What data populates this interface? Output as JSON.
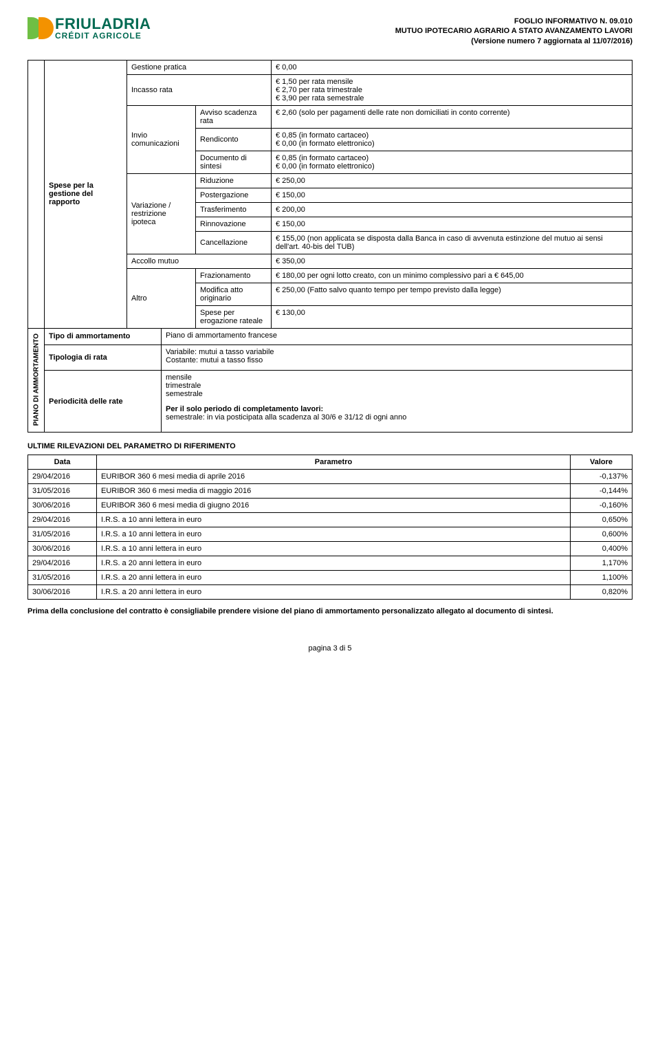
{
  "header": {
    "logo_main": "FRIULADRIA",
    "logo_sub": "CRÉDIT AGRICOLE",
    "doc_line1": "FOGLIO INFORMATIVO N. 09.010",
    "doc_line2": "MUTUO IPOTECARIO AGRARIO A STATO AVANZAMENTO LAVORI",
    "doc_line3": "(Versione numero 7 aggiornata al 11/07/2016)"
  },
  "spese": {
    "row_label": "Spese per la gestione del rapporto",
    "gestione_pratica": {
      "l": "Gestione pratica",
      "v": "€ 0,00"
    },
    "incasso_rata": {
      "l": "Incasso rata",
      "v": "€ 1,50 per rata mensile\n€ 2,70 per rata trimestrale\n€ 3,90 per rata semestrale"
    },
    "invio": {
      "l": "Invio comunicazioni",
      "avviso": {
        "l": "Avviso scadenza rata",
        "v": "€ 2,60 (solo per pagamenti delle rate non domiciliati in conto corrente)"
      },
      "rendiconto": {
        "l": "Rendiconto",
        "v": "€ 0,85 (in formato cartaceo)\n€ 0,00 (in formato elettronico)"
      },
      "documento": {
        "l": "Documento di sintesi",
        "v": "€ 0,85 (in formato cartaceo)\n€ 0,00 (in formato elettronico)"
      }
    },
    "variazione": {
      "l": "Variazione / restrizione ipoteca",
      "riduzione": {
        "l": "Riduzione",
        "v": "€ 250,00"
      },
      "postergazione": {
        "l": "Postergazione",
        "v": "€ 150,00"
      },
      "trasferimento": {
        "l": "Trasferimento",
        "v": "€ 200,00"
      },
      "rinnovazione": {
        "l": "Rinnovazione",
        "v": "€ 150,00"
      },
      "cancellazione": {
        "l": "Cancellazione",
        "v": "€ 155,00 (non applicata se disposta dalla Banca in caso di avvenuta estinzione del mutuo ai sensi dell'art. 40-bis del TUB)"
      }
    },
    "accollo": {
      "l": "Accollo mutuo",
      "v": "€ 350,00"
    },
    "altro": {
      "l": "Altro",
      "frazionamento": {
        "l": "Frazionamento",
        "v": "€ 180,00 per ogni lotto creato, con un minimo complessivo pari a € 645,00"
      },
      "modifica": {
        "l": "Modifica atto originario",
        "v": "€ 250,00 (Fatto salvo quanto tempo per tempo previsto dalla legge)"
      },
      "erogazione": {
        "l": "Spese per erogazione rateale",
        "v": "€ 130,00"
      }
    }
  },
  "piano": {
    "section_label": "PIANO DI AMMORTAMENTO",
    "tipo": {
      "l": "Tipo di ammortamento",
      "v": "Piano di ammortamento francese"
    },
    "tipologia": {
      "l": "Tipologia di rata",
      "v": "Variabile: mutui a tasso variabile\nCostante: mutui a tasso fisso"
    },
    "periodicita": {
      "l": "Periodicità delle rate",
      "v1": "mensile\ntrimestrale\nsemestrale",
      "v2": "Per il solo periodo di completamento lavori:",
      "v3": "semestrale: in via posticipata alla scadenza al 30/6 e 31/12 di ogni anno"
    }
  },
  "rilevazioni": {
    "title": "ULTIME RILEVAZIONI DEL PARAMETRO DI RIFERIMENTO",
    "cols": [
      "Data",
      "Parametro",
      "Valore"
    ],
    "rows": [
      [
        "29/04/2016",
        "EURIBOR 360 6 mesi media di aprile 2016",
        "-0,137%"
      ],
      [
        "31/05/2016",
        "EURIBOR 360 6 mesi media di maggio 2016",
        "-0,144%"
      ],
      [
        "30/06/2016",
        "EURIBOR 360 6 mesi media di giugno 2016",
        "-0,160%"
      ],
      [
        "29/04/2016",
        "I.R.S. a 10 anni lettera in euro",
        "0,650%"
      ],
      [
        "31/05/2016",
        "I.R.S. a 10 anni lettera in euro",
        "0,600%"
      ],
      [
        "30/06/2016",
        "I.R.S. a 10 anni lettera in euro",
        "0,400%"
      ],
      [
        "29/04/2016",
        "I.R.S. a 20 anni lettera in euro",
        "1,170%"
      ],
      [
        "31/05/2016",
        "I.R.S. a 20 anni lettera in euro",
        "1,100%"
      ],
      [
        "30/06/2016",
        "I.R.S. a 20 anni lettera in euro",
        "0,820%"
      ]
    ]
  },
  "closing_note": "Prima della conclusione del contratto è consigliabile prendere visione del piano di ammortamento personalizzato allegato al documento di sintesi.",
  "footer": "pagina 3 di 5"
}
